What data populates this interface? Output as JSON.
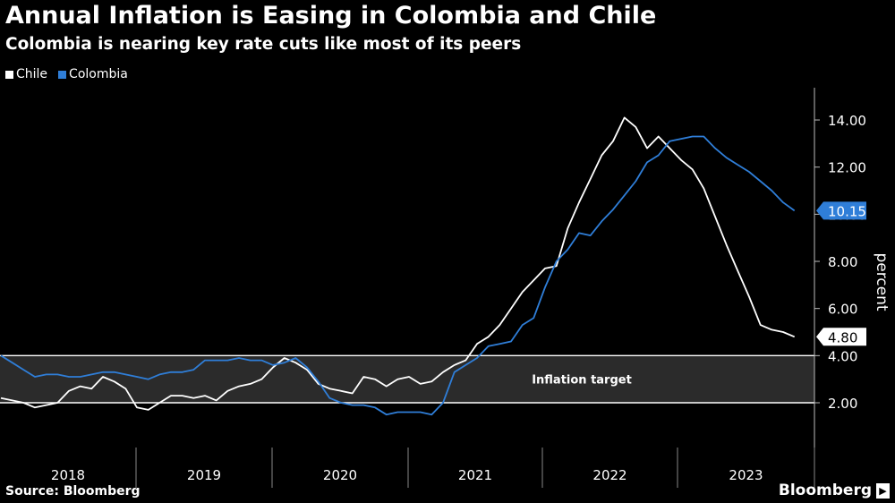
{
  "title": "Annual Inflation is Easing in Colombia and Chile",
  "subtitle": "Colombia is nearing key rate cuts like most of its peers",
  "source": "Source: Bloomberg",
  "brand": "Bloomberg",
  "brand_icon": "bloomberg-terminal-icon",
  "colors": {
    "chile": "#ffffff",
    "colombia": "#2f7ed8",
    "band": "#2b2b2b"
  },
  "chart_data": {
    "type": "line",
    "title": "Annual Inflation is Easing in Colombia and Chile",
    "subtitle": "Colombia is nearing key rate cuts like most of its peers",
    "ylabel": "percent",
    "ylim": [
      0,
      15
    ],
    "yticks": [
      "2.00",
      "4.00",
      "6.00",
      "8.00",
      "10.00",
      "12.00",
      "14.00"
    ],
    "ytick_values": [
      2,
      4,
      6,
      8,
      10,
      12,
      14
    ],
    "xticks": [
      "2018",
      "2019",
      "2020",
      "2021",
      "2022",
      "2023"
    ],
    "x_start": "2018-01",
    "x_end": "2023-12",
    "grid": false,
    "legend": "top-left",
    "annotation": {
      "label": "Inflation target",
      "from": 2,
      "to": 4
    },
    "last_labels": {
      "Chile": "4.80",
      "Colombia": "10.15"
    },
    "series": [
      {
        "name": "Chile",
        "values": [
          2.2,
          2.1,
          2.0,
          1.8,
          1.9,
          2.0,
          2.5,
          2.7,
          2.6,
          3.1,
          2.9,
          2.6,
          1.8,
          1.7,
          2.0,
          2.3,
          2.3,
          2.2,
          2.3,
          2.1,
          2.5,
          2.7,
          2.8,
          3.0,
          3.5,
          3.9,
          3.7,
          3.4,
          2.8,
          2.6,
          2.5,
          2.4,
          3.1,
          3.0,
          2.7,
          3.0,
          3.1,
          2.8,
          2.9,
          3.3,
          3.6,
          3.8,
          4.5,
          4.8,
          5.3,
          6.0,
          6.7,
          7.2,
          7.7,
          7.8,
          9.4,
          10.5,
          11.5,
          12.5,
          13.1,
          14.1,
          13.7,
          12.8,
          13.3,
          12.8,
          12.3,
          11.9,
          11.1,
          9.9,
          8.7,
          7.6,
          6.5,
          5.3,
          5.1,
          5.0,
          4.8
        ]
      },
      {
        "name": "Colombia",
        "values": [
          4.0,
          3.7,
          3.4,
          3.1,
          3.2,
          3.2,
          3.1,
          3.1,
          3.2,
          3.3,
          3.3,
          3.2,
          3.1,
          3.0,
          3.2,
          3.3,
          3.3,
          3.4,
          3.8,
          3.8,
          3.8,
          3.9,
          3.8,
          3.8,
          3.6,
          3.7,
          3.9,
          3.5,
          2.9,
          2.2,
          2.0,
          1.9,
          1.9,
          1.8,
          1.5,
          1.6,
          1.6,
          1.6,
          1.5,
          2.0,
          3.3,
          3.6,
          3.9,
          4.4,
          4.5,
          4.6,
          5.3,
          5.6,
          6.9,
          8.0,
          8.5,
          9.2,
          9.1,
          9.7,
          10.2,
          10.8,
          11.4,
          12.2,
          12.5,
          13.1,
          13.2,
          13.3,
          13.3,
          12.8,
          12.4,
          12.1,
          11.8,
          11.4,
          11.0,
          10.5,
          10.15
        ]
      }
    ]
  }
}
